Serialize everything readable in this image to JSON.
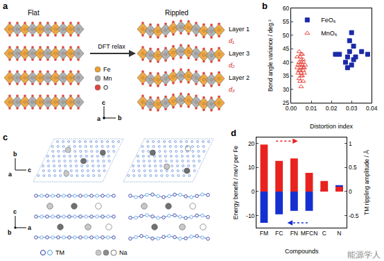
{
  "chart_data": [
    {
      "panel": "b",
      "type": "scatter",
      "x_label": "Distortion index",
      "y_label": "Bond angle variance / deg.²",
      "xlim": [
        0,
        0.04
      ],
      "xticks": [
        {
          "value": 0,
          "label": "0.00"
        },
        {
          "value": 0.01,
          "label": "0.01"
        },
        {
          "value": 0.02,
          "label": "0.02"
        },
        {
          "value": 0.03,
          "label": "0.03"
        },
        {
          "value": 0.04,
          "label": "0.04"
        }
      ],
      "ylim": [
        25,
        60
      ],
      "yticks": [
        25,
        30,
        35,
        40,
        45,
        50,
        55,
        60
      ],
      "grid": false,
      "legend": "upper left",
      "series": [
        {
          "name": "FeO₆",
          "color": "#1a2aa8",
          "marker": "square",
          "x": [
            0.022,
            0.024,
            0.027,
            0.028,
            0.028,
            0.029,
            0.029,
            0.03,
            0.03,
            0.031,
            0.031,
            0.032,
            0.035,
            0.038
          ],
          "y": [
            43,
            43,
            40,
            38,
            42,
            44,
            48,
            51,
            39,
            46,
            41,
            42,
            44,
            43
          ]
        },
        {
          "name": "MnO₆",
          "color": "#e8483f",
          "marker": "triangle-up-open",
          "x": [
            0.003,
            0.003,
            0.0035,
            0.004,
            0.004,
            0.004,
            0.0045,
            0.0045,
            0.005,
            0.005,
            0.005,
            0.005,
            0.0055,
            0.0055,
            0.006,
            0.006,
            0.006,
            0.0065,
            0.0065,
            0.007,
            0.004,
            0.005,
            0.006,
            0.0035,
            0.0045,
            0.0055,
            0.005,
            0.0045,
            0.006,
            0.005
          ],
          "y": [
            38,
            42,
            36,
            40,
            44,
            34,
            39,
            37,
            41,
            38,
            35,
            31,
            39,
            43,
            37,
            40,
            33,
            38,
            36,
            39,
            37,
            36,
            41,
            39,
            42,
            35,
            40,
            33,
            38,
            43
          ]
        }
      ]
    },
    {
      "panel": "d",
      "type": "bar",
      "categories": [
        "FM",
        "FC",
        "FN",
        "MFCN",
        "C",
        "N"
      ],
      "x_label": "Compounds",
      "y_label": "Energy benefit / meV per Fe",
      "y2_label": "TM rippling amplitude / Å",
      "ylim": [
        -15,
        22.5
      ],
      "yticks": [
        -10,
        0,
        10,
        20
      ],
      "y2lim": [
        -0.75,
        1.125
      ],
      "y2ticks": [
        -0.5,
        0,
        0.5,
        1
      ],
      "grid": false,
      "series": [
        {
          "color": "#e8231f",
          "axis": "y2",
          "values": [
            0.98,
            0.64,
            0.69,
            0.39,
            0.22,
            0.1
          ]
        },
        {
          "color": "#1530d0",
          "values": [
            -13,
            -9.5,
            -8,
            -8,
            0.8,
            2.7
          ]
        }
      ]
    }
  ],
  "diagrams": [
    {
      "panel": "a",
      "left_title": "Flat",
      "right_title": "Rippled",
      "arrow_label": "DFT relax",
      "layer_labels": [
        "Layer 1",
        "d₁",
        "Layer 3",
        "d₂",
        "Layer 2",
        "d₃"
      ],
      "legend": [
        {
          "name": "Fe",
          "color": "#f0a030"
        },
        {
          "name": "Mn",
          "color": "#a8a8a8"
        },
        {
          "name": "O",
          "color": "#e0453a"
        }
      ],
      "axes": [
        "c",
        "a",
        "b"
      ]
    },
    {
      "panel": "c",
      "axes_top": [
        "b",
        "c",
        "a"
      ],
      "axes_side": [
        "c",
        "a",
        "b"
      ],
      "legend": [
        {
          "name": "TM",
          "color": "#2233aa"
        },
        {
          "name": "Na",
          "color": "#8c8c8c"
        }
      ]
    }
  ],
  "watermark": "能源学人"
}
